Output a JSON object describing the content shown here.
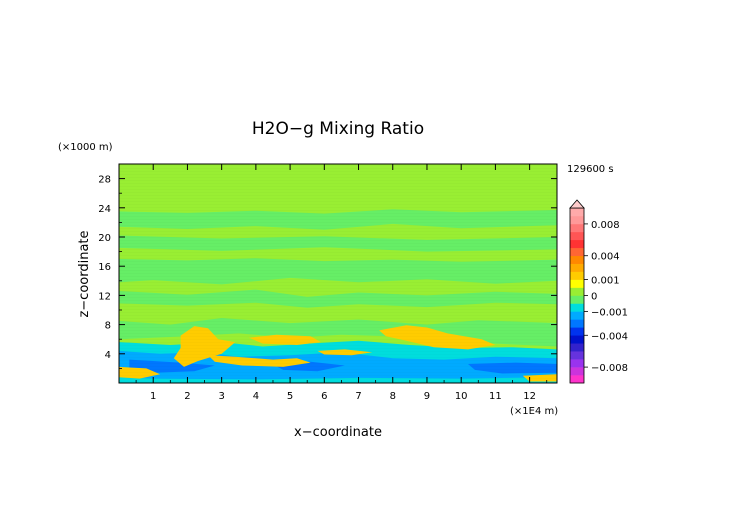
{
  "chart_data": {
    "type": "heatmap",
    "title": "H2O−g Mixing Ratio",
    "xlabel": "x−coordinate",
    "ylabel": "z−coordinate",
    "x_unit": "(×1E4 m)",
    "y_unit": "(×1000 m)",
    "time_label": "129600 s",
    "xlim": [
      0,
      12.8
    ],
    "ylim": [
      0,
      30
    ],
    "x_ticks": [
      "1",
      "2",
      "3",
      "4",
      "5",
      "6",
      "7",
      "8",
      "9",
      "10",
      "11",
      "12"
    ],
    "y_ticks": [
      "4",
      "8",
      "12",
      "16",
      "20",
      "24",
      "28"
    ],
    "colorbar": {
      "levels": [
        -0.01,
        -0.009,
        -0.008,
        -0.007,
        -0.006,
        -0.005,
        -0.004,
        -0.003,
        -0.002,
        -0.001,
        -0.0005,
        0,
        0.0005,
        0.001,
        0.002,
        0.003,
        0.004,
        0.005,
        0.006,
        0.007,
        0.008,
        0.009,
        0.01
      ],
      "colors": [
        "#ff33cc",
        "#cc33dd",
        "#9933ee",
        "#6633dd",
        "#3322cc",
        "#0011cc",
        "#0033ee",
        "#0077ff",
        "#00aaff",
        "#00dddd",
        "#66ee66",
        "#99ee33",
        "#ffff00",
        "#ffcc00",
        "#ffaa00",
        "#ff8800",
        "#ff6633",
        "#ff3333",
        "#ff5555",
        "#ff7777",
        "#ff9999",
        "#ffaaaa"
      ],
      "tick_labels": [
        "0.008",
        "0.004",
        "0.001",
        "0",
        "−0.001",
        "−0.004",
        "−0.008"
      ],
      "tick_values": [
        0.008,
        0.004,
        0.001,
        0,
        -0.001,
        -0.004,
        -0.008
      ]
    },
    "background_value": 0.0003,
    "regions": [
      {
        "value": -0.0003,
        "points": [
          [
            0,
            23.5
          ],
          [
            2,
            23.3
          ],
          [
            4,
            23.6
          ],
          [
            6,
            23.2
          ],
          [
            8,
            23.8
          ],
          [
            10,
            23.4
          ],
          [
            12.8,
            23.7
          ],
          [
            12.8,
            21.6
          ],
          [
            10,
            21.2
          ],
          [
            8,
            21.8
          ],
          [
            6,
            21.0
          ],
          [
            4,
            21.5
          ],
          [
            2,
            21.1
          ],
          [
            0,
            21.4
          ]
        ]
      },
      {
        "value": -0.0003,
        "points": [
          [
            0,
            20.2
          ],
          [
            3,
            19.8
          ],
          [
            6,
            20.1
          ],
          [
            9,
            19.6
          ],
          [
            12.8,
            20.0
          ],
          [
            12.8,
            18.3
          ],
          [
            9,
            18.0
          ],
          [
            6,
            18.6
          ],
          [
            3,
            18.1
          ],
          [
            0,
            18.5
          ]
        ]
      },
      {
        "value": -0.0003,
        "points": [
          [
            0,
            17.0
          ],
          [
            2,
            16.8
          ],
          [
            4,
            17.1
          ],
          [
            6,
            16.7
          ],
          [
            8,
            16.9
          ],
          [
            10,
            16.6
          ],
          [
            12.8,
            16.9
          ],
          [
            12.8,
            14.0
          ],
          [
            11,
            13.6
          ],
          [
            9,
            14.2
          ],
          [
            7,
            13.8
          ],
          [
            5,
            14.4
          ],
          [
            3,
            13.5
          ],
          [
            1,
            14.1
          ],
          [
            0,
            13.8
          ]
        ]
      },
      {
        "value": -0.0003,
        "points": [
          [
            0,
            12.6
          ],
          [
            2,
            12.1
          ],
          [
            4,
            12.8
          ],
          [
            5.5,
            11.8
          ],
          [
            7,
            12.4
          ],
          [
            9,
            12.0
          ],
          [
            11,
            12.5
          ],
          [
            12.8,
            12.2
          ],
          [
            12.8,
            10.8
          ],
          [
            11,
            11.0
          ],
          [
            9,
            10.4
          ],
          [
            7,
            10.8
          ],
          [
            5.5,
            10.3
          ],
          [
            4,
            11.0
          ],
          [
            2,
            10.6
          ],
          [
            0,
            10.9
          ]
        ]
      },
      {
        "value": -0.0003,
        "points": [
          [
            0,
            8.5
          ],
          [
            1.5,
            8.0
          ],
          [
            3,
            8.9
          ],
          [
            5,
            8.2
          ],
          [
            7,
            8.7
          ],
          [
            9,
            8.0
          ],
          [
            10.5,
            8.6
          ],
          [
            12.8,
            8.2
          ],
          [
            12.8,
            5.0
          ],
          [
            11,
            5.4
          ],
          [
            9.5,
            6.0
          ],
          [
            8,
            6.4
          ],
          [
            6.5,
            6.6
          ],
          [
            5,
            6.2
          ],
          [
            3.5,
            6.8
          ],
          [
            2,
            6.4
          ],
          [
            0,
            6.0
          ]
        ]
      },
      {
        "value": -0.0008,
        "points": [
          [
            0,
            5.6
          ],
          [
            1.5,
            5.2
          ],
          [
            3,
            5.6
          ],
          [
            4.2,
            5.0
          ],
          [
            5.5,
            5.4
          ],
          [
            7,
            5.8
          ],
          [
            8.5,
            5.2
          ],
          [
            10,
            4.8
          ],
          [
            11.5,
            4.9
          ],
          [
            12.8,
            4.6
          ],
          [
            12.8,
            0
          ],
          [
            0,
            0
          ]
        ]
      },
      {
        "value": -0.0015,
        "points": [
          [
            0,
            4.4
          ],
          [
            1.2,
            4.0
          ],
          [
            2.5,
            4.2
          ],
          [
            3.5,
            3.6
          ],
          [
            5,
            3.8
          ],
          [
            6.5,
            4.2
          ],
          [
            8,
            3.4
          ],
          [
            9.5,
            3.2
          ],
          [
            11,
            3.6
          ],
          [
            12.8,
            3.4
          ],
          [
            12.8,
            0.8
          ],
          [
            10,
            0.6
          ],
          [
            7,
            0.7
          ],
          [
            4,
            0.5
          ],
          [
            1,
            0.6
          ],
          [
            0,
            0.8
          ]
        ]
      },
      {
        "value": -0.0025,
        "points": [
          [
            0.3,
            3.2
          ],
          [
            1.8,
            2.8
          ],
          [
            2.8,
            2.4
          ],
          [
            2.2,
            1.6
          ],
          [
            1.0,
            1.4
          ],
          [
            0.3,
            2.0
          ]
        ]
      },
      {
        "value": -0.0025,
        "points": [
          [
            4.4,
            2.8
          ],
          [
            5.6,
            2.9
          ],
          [
            6.6,
            2.4
          ],
          [
            5.8,
            1.6
          ],
          [
            4.8,
            1.8
          ]
        ]
      },
      {
        "value": -0.0025,
        "points": [
          [
            10.2,
            2.6
          ],
          [
            11.6,
            2.8
          ],
          [
            12.8,
            2.6
          ],
          [
            12.8,
            1.4
          ],
          [
            11.2,
            1.3
          ],
          [
            10.4,
            1.8
          ]
        ]
      },
      {
        "value": 0.0015,
        "points": [
          [
            1.8,
            6.5
          ],
          [
            2.2,
            7.8
          ],
          [
            2.6,
            7.5
          ],
          [
            2.9,
            6.0
          ],
          [
            3.4,
            5.6
          ],
          [
            3.0,
            4.0
          ],
          [
            2.3,
            3.0
          ],
          [
            1.9,
            2.2
          ],
          [
            1.6,
            3.4
          ],
          [
            1.8,
            4.8
          ]
        ]
      },
      {
        "value": 0.0015,
        "points": [
          [
            2.6,
            3.8
          ],
          [
            3.4,
            3.6
          ],
          [
            4.5,
            3.2
          ],
          [
            5.2,
            3.4
          ],
          [
            5.6,
            2.8
          ],
          [
            4.8,
            2.2
          ],
          [
            3.6,
            2.4
          ],
          [
            2.8,
            2.9
          ]
        ]
      },
      {
        "value": 0.0015,
        "points": [
          [
            3.8,
            6.2
          ],
          [
            4.6,
            6.6
          ],
          [
            5.6,
            6.4
          ],
          [
            5.9,
            5.6
          ],
          [
            5.2,
            5.2
          ],
          [
            4.2,
            5.4
          ]
        ]
      },
      {
        "value": 0.0015,
        "points": [
          [
            5.8,
            4.4
          ],
          [
            6.6,
            4.6
          ],
          [
            7.4,
            4.2
          ],
          [
            6.8,
            3.8
          ],
          [
            6.0,
            3.9
          ]
        ]
      },
      {
        "value": 0.0015,
        "points": [
          [
            7.6,
            7.2
          ],
          [
            8.4,
            7.9
          ],
          [
            9.0,
            7.6
          ],
          [
            9.6,
            6.8
          ],
          [
            10.6,
            6.0
          ],
          [
            11.0,
            5.2
          ],
          [
            10.2,
            4.6
          ],
          [
            9.2,
            4.9
          ],
          [
            8.4,
            5.8
          ],
          [
            7.8,
            6.4
          ]
        ]
      },
      {
        "value": 0.0015,
        "points": [
          [
            0,
            2.2
          ],
          [
            0.8,
            2.0
          ],
          [
            1.2,
            1.2
          ],
          [
            0.6,
            0.6
          ],
          [
            0,
            0.8
          ]
        ]
      },
      {
        "value": 0.0015,
        "points": [
          [
            11.8,
            1.0
          ],
          [
            12.8,
            1.2
          ],
          [
            12.8,
            0.2
          ],
          [
            12.0,
            0.2
          ]
        ]
      }
    ]
  }
}
